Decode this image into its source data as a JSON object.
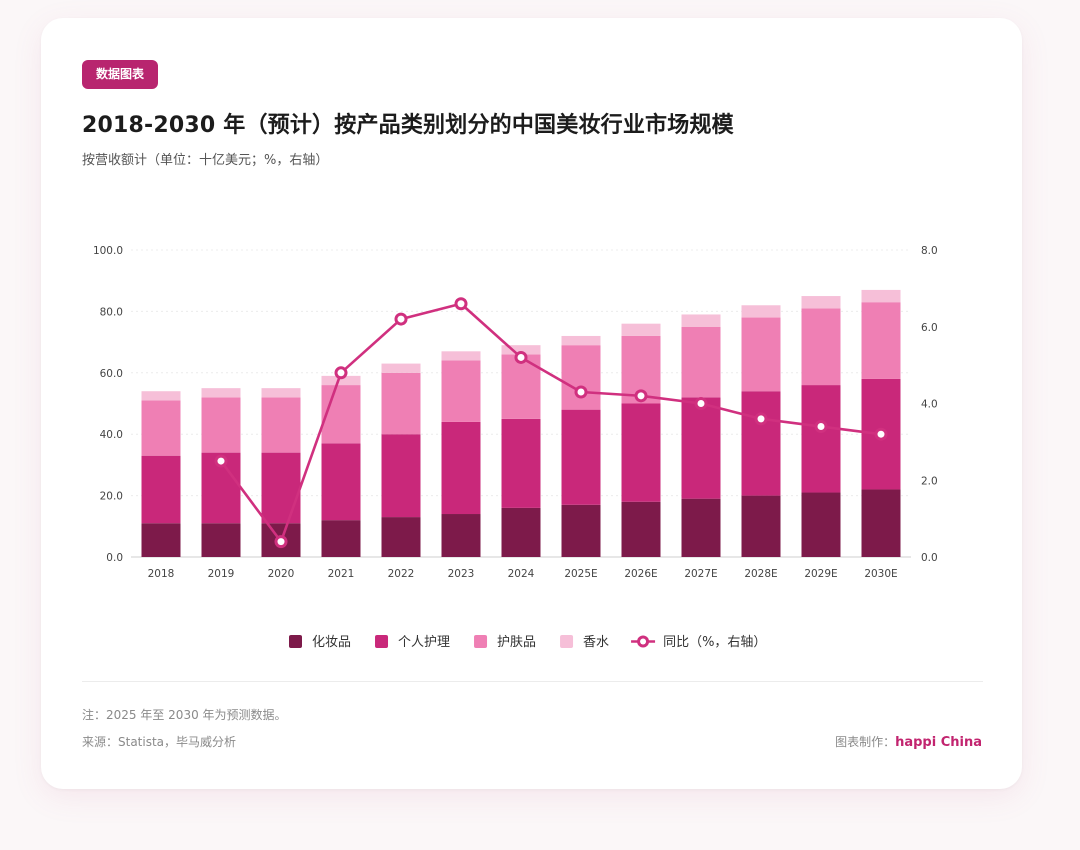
{
  "badge": "数据图表",
  "title": "2018-2030 年（预计）按产品类别划分的中国美妆行业市场规模",
  "subtitle": "按营收额计（单位：十亿美元；%，右轴）",
  "footer": {
    "note": "注：2025 年至 2030 年为预测数据。",
    "source": "来源：Statista，毕马威分析",
    "credit_label": "图表制作：",
    "credit_brand": "happi China"
  },
  "colors": {
    "cosmetics": "#7d1a4a",
    "personal_care": "#c9287a",
    "skincare": "#ef7fb4",
    "fragrance": "#f6bfd8",
    "yoy_line": "#d0307f"
  },
  "chart_data": {
    "type": "bar",
    "stacked": true,
    "categories": [
      "2018",
      "2019",
      "2020",
      "2021",
      "2022",
      "2023",
      "2024",
      "2025E",
      "2026E",
      "2027E",
      "2028E",
      "2029E",
      "2030E"
    ],
    "series": [
      {
        "name": "化妆品",
        "key": "cosmetics",
        "values": [
          11,
          11,
          11,
          12,
          13,
          14,
          16,
          17,
          18,
          19,
          20,
          21,
          22
        ]
      },
      {
        "name": "个人护理",
        "key": "personal_care",
        "values": [
          22,
          23,
          23,
          25,
          27,
          30,
          29,
          31,
          32,
          33,
          34,
          35,
          36
        ]
      },
      {
        "name": "护肤品",
        "key": "skincare",
        "values": [
          18,
          18,
          18,
          19,
          20,
          20,
          21,
          21,
          22,
          23,
          24,
          25,
          25
        ]
      },
      {
        "name": "香水",
        "key": "fragrance",
        "values": [
          3,
          3,
          3,
          3,
          3,
          3,
          3,
          3,
          4,
          4,
          4,
          4,
          4
        ]
      }
    ],
    "line": {
      "name": "同比（%，右轴）",
      "axis": "right",
      "values": [
        null,
        2.5,
        0.4,
        4.8,
        6.2,
        6.6,
        5.2,
        4.3,
        4.2,
        4.0,
        3.6,
        3.4,
        3.2
      ]
    },
    "y_left": {
      "min": 0,
      "max": 100,
      "ticks": [
        "0.0",
        "20.0",
        "40.0",
        "60.0",
        "80.0",
        "100.0"
      ]
    },
    "y_right": {
      "min": 0,
      "max": 8,
      "ticks": [
        "0.0",
        "2.0",
        "4.0",
        "6.0",
        "8.0"
      ]
    },
    "legend": [
      "化妆品",
      "个人护理",
      "护肤品",
      "香水",
      "同比（%，右轴）"
    ],
    "legend_position": "bottom-center",
    "grid": true
  }
}
